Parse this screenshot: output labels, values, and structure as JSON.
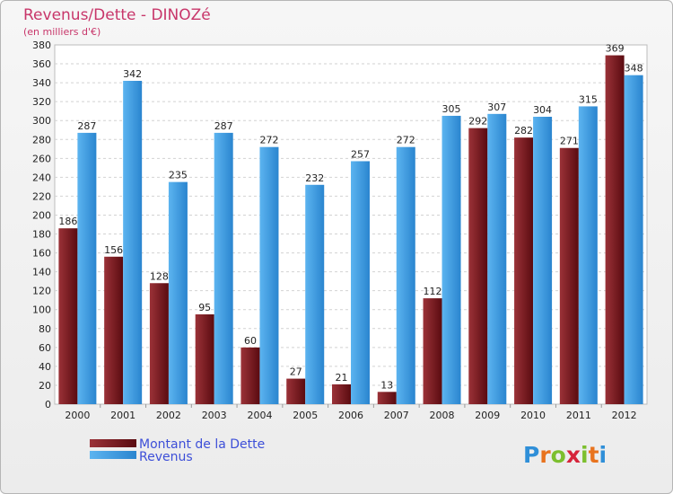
{
  "chart_data": {
    "type": "bar",
    "title": "Revenus/Dette - DINOZé",
    "subtitle": "(en milliers d'€)",
    "categories": [
      "2000",
      "2001",
      "2002",
      "2003",
      "2004",
      "2005",
      "2006",
      "2007",
      "2008",
      "2009",
      "2010",
      "2011",
      "2012"
    ],
    "series": [
      {
        "name": "Montant de la Dette",
        "color": "#6b1016",
        "values": [
          186,
          156,
          128,
          95,
          60,
          27,
          21,
          13,
          112,
          292,
          282,
          271,
          369
        ]
      },
      {
        "name": "Revenus",
        "color": "#3a9be0",
        "values": [
          287,
          342,
          235,
          287,
          272,
          232,
          257,
          272,
          305,
          307,
          304,
          315,
          348
        ]
      }
    ],
    "ylim": [
      0,
      380
    ],
    "yticks": [
      0,
      20,
      40,
      60,
      80,
      100,
      120,
      140,
      160,
      180,
      200,
      220,
      240,
      260,
      280,
      300,
      320,
      340,
      360,
      380
    ],
    "grid": true,
    "legend_position": "bottom-left"
  },
  "logo": {
    "letters": [
      "P",
      "r",
      "o",
      "x",
      "i",
      "t",
      "i"
    ],
    "colors": [
      "#2f8fd8",
      "#e8731e",
      "#7cbf2e",
      "#d6243a",
      "#7cbf2e",
      "#e8731e",
      "#2f8fd8"
    ]
  }
}
